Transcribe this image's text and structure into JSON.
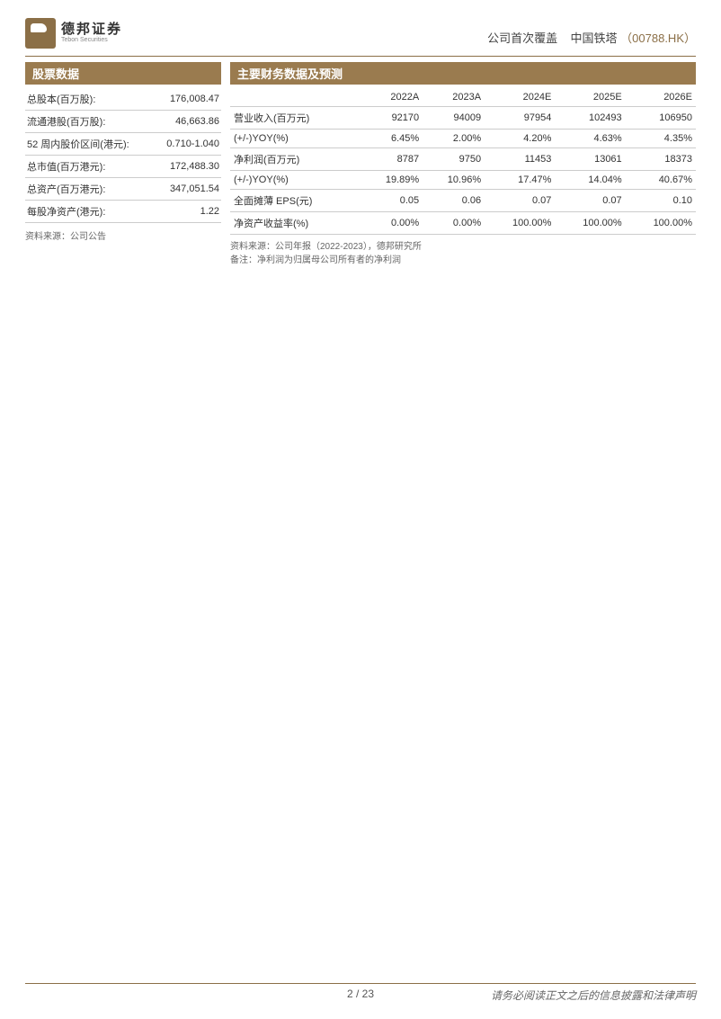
{
  "logo": {
    "cn": "德邦证券",
    "en": "Tebon Securities"
  },
  "header": {
    "coverage": "公司首次覆盖",
    "company": "中国铁塔",
    "ticker": "（00788.HK）"
  },
  "stock_section": {
    "title": "股票数据",
    "rows": [
      {
        "label": "总股本(百万股):",
        "value": "176,008.47"
      },
      {
        "label": "流通港股(百万股):",
        "value": "46,663.86"
      },
      {
        "label": "52 周内股价区间(港元):",
        "value": "0.710-1.040"
      },
      {
        "label": "总市值(百万港元):",
        "value": "172,488.30"
      },
      {
        "label": "总资产(百万港元):",
        "value": "347,051.54"
      },
      {
        "label": "每股净资产(港元):",
        "value": "1.22"
      }
    ],
    "source": "资料来源：公司公告"
  },
  "fin_section": {
    "title": "主要财务数据及预测",
    "columns": [
      "",
      "2022A",
      "2023A",
      "2024E",
      "2025E",
      "2026E"
    ],
    "rows": [
      [
        "营业收入(百万元)",
        "92170",
        "94009",
        "97954",
        "102493",
        "106950"
      ],
      [
        "(+/-)YOY(%)",
        "6.45%",
        "2.00%",
        "4.20%",
        "4.63%",
        "4.35%"
      ],
      [
        "净利润(百万元)",
        "8787",
        "9750",
        "11453",
        "13061",
        "18373"
      ],
      [
        "(+/-)YOY(%)",
        "19.89%",
        "10.96%",
        "17.47%",
        "14.04%",
        "40.67%"
      ],
      [
        "全面摊薄 EPS(元)",
        "0.05",
        "0.06",
        "0.07",
        "0.07",
        "0.10"
      ],
      [
        "净资产收益率(%)",
        "0.00%",
        "0.00%",
        "100.00%",
        "100.00%",
        "100.00%"
      ]
    ],
    "source": "资料来源：公司年报（2022-2023），德邦研究所",
    "note": "备注：净利润为归属母公司所有者的净利润"
  },
  "footer": {
    "page": "2 / 23",
    "disclaimer": "请务必阅读正文之后的信息披露和法律声明"
  },
  "colors": {
    "brand": "#9a7b4f",
    "rule": "#8b6f47",
    "border": "#cccccc",
    "text": "#333333"
  }
}
